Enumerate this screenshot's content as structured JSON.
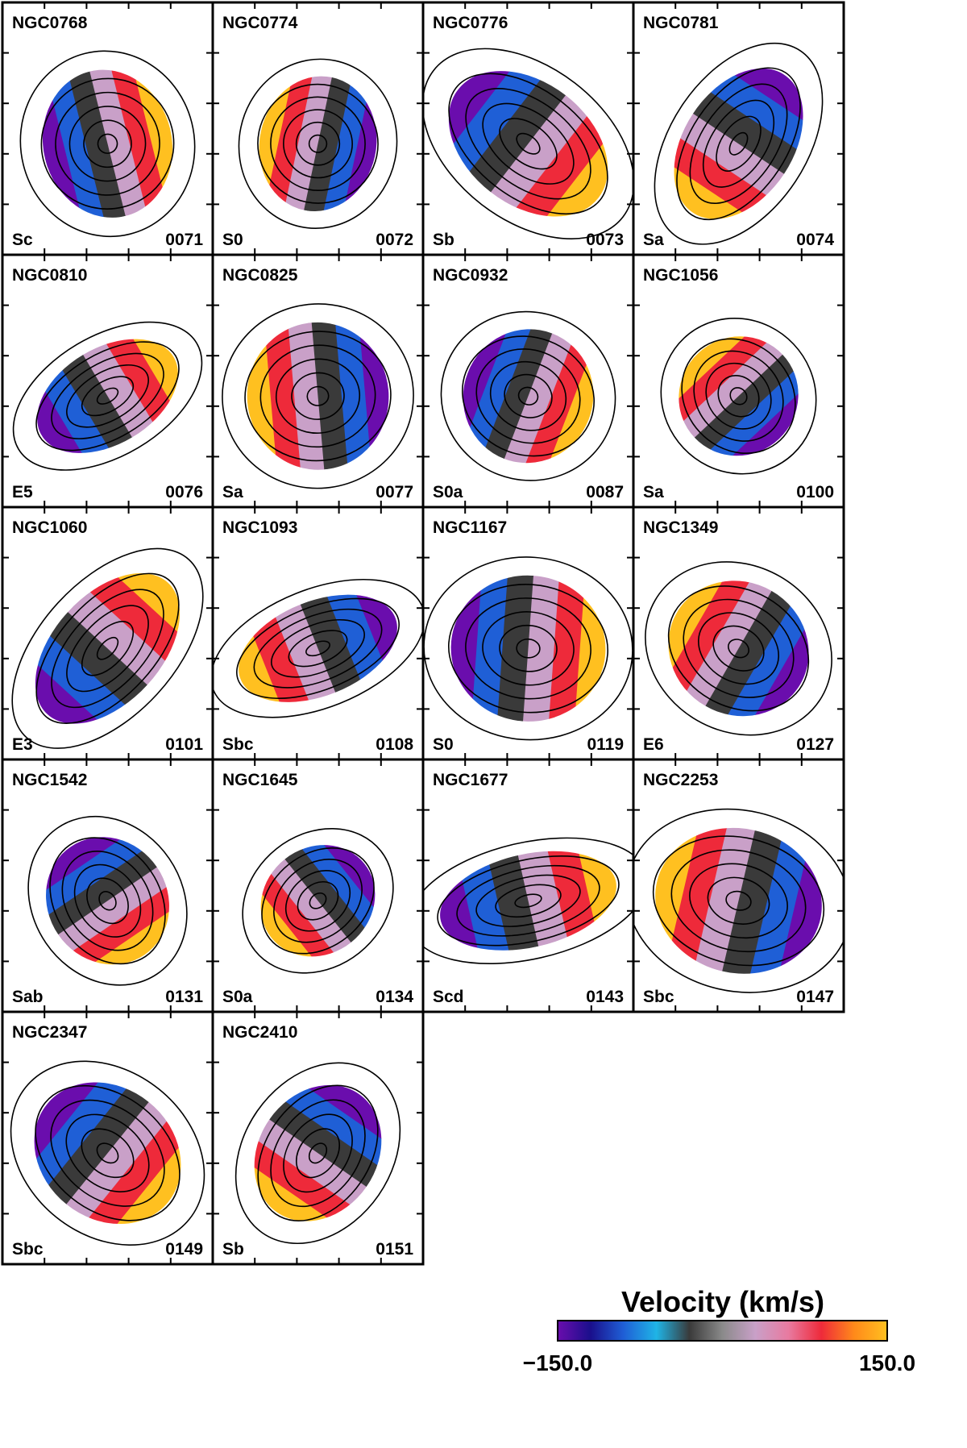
{
  "chart_data": {
    "type": "heatmap",
    "description_free": true,
    "colorbar": {
      "title": "Velocity (km/s)",
      "min": -150.0,
      "max": 150.0,
      "min_label": "−150.0",
      "max_label": "150.0",
      "colors": [
        "#6a0dad",
        "#1a0f8c",
        "#1f5fd6",
        "#1fb4e6",
        "#3a3a3a",
        "#8a8a8a",
        "#c9a0c8",
        "#e87aa0",
        "#ee2a3a",
        "#ff8a1a",
        "#ffc020"
      ]
    },
    "panels": [
      {
        "name": "NGC0768",
        "type": "Sc",
        "id": "0071"
      },
      {
        "name": "NGC0774",
        "type": "S0",
        "id": "0072"
      },
      {
        "name": "NGC0776",
        "type": "Sb",
        "id": "0073"
      },
      {
        "name": "NGC0781",
        "type": "Sa",
        "id": "0074"
      },
      {
        "name": "NGC0810",
        "type": "E5",
        "id": "0076"
      },
      {
        "name": "NGC0825",
        "type": "Sa",
        "id": "0077"
      },
      {
        "name": "NGC0932",
        "type": "S0a",
        "id": "0087"
      },
      {
        "name": "NGC1056",
        "type": "Sa",
        "id": "0100"
      },
      {
        "name": "NGC1060",
        "type": "E3",
        "id": "0101"
      },
      {
        "name": "NGC1093",
        "type": "Sbc",
        "id": "0108"
      },
      {
        "name": "NGC1167",
        "type": "S0",
        "id": "0119"
      },
      {
        "name": "NGC1349",
        "type": "E6",
        "id": "0127"
      },
      {
        "name": "NGC1542",
        "type": "Sab",
        "id": "0131"
      },
      {
        "name": "NGC1645",
        "type": "S0a",
        "id": "0134"
      },
      {
        "name": "NGC1677",
        "type": "Scd",
        "id": "0143"
      },
      {
        "name": "NGC2253",
        "type": "Sbc",
        "id": "0147"
      },
      {
        "name": "NGC2347",
        "type": "Sbc",
        "id": "0149"
      },
      {
        "name": "NGC2410",
        "type": "Sb",
        "id": "0151"
      }
    ]
  }
}
